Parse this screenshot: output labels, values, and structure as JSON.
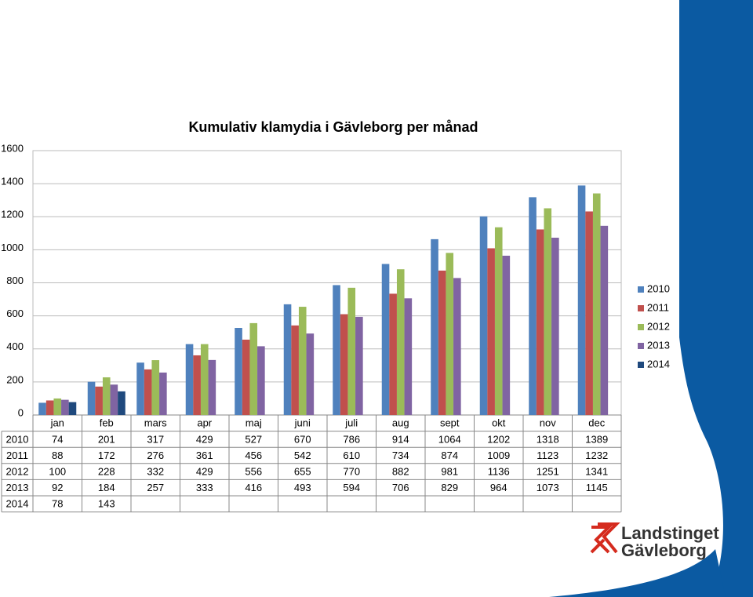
{
  "chart_data": {
    "type": "bar",
    "title": "Kumulativ klamydia i Gävleborg per månad",
    "categories": [
      "jan",
      "feb",
      "mars",
      "apr",
      "maj",
      "juni",
      "juli",
      "aug",
      "sept",
      "okt",
      "nov",
      "dec"
    ],
    "series": [
      {
        "name": "2010",
        "color": "#4f81bd",
        "values": [
          74,
          201,
          317,
          429,
          527,
          670,
          786,
          914,
          1064,
          1202,
          1318,
          1389
        ]
      },
      {
        "name": "2011",
        "color": "#c0504d",
        "values": [
          88,
          172,
          276,
          361,
          456,
          542,
          610,
          734,
          874,
          1009,
          1123,
          1232
        ]
      },
      {
        "name": "2012",
        "color": "#9bbb59",
        "values": [
          100,
          228,
          332,
          429,
          556,
          655,
          770,
          882,
          981,
          1136,
          1251,
          1341
        ]
      },
      {
        "name": "2013",
        "color": "#8064a2",
        "values": [
          92,
          184,
          257,
          333,
          416,
          493,
          594,
          706,
          829,
          964,
          1073,
          1145
        ]
      },
      {
        "name": "2014",
        "color": "#1f497d",
        "values": [
          78,
          143,
          null,
          null,
          null,
          null,
          null,
          null,
          null,
          null,
          null,
          null
        ]
      }
    ],
    "ylim": [
      0,
      1600
    ],
    "yticks": [
      0,
      200,
      400,
      600,
      800,
      1000,
      1200,
      1400,
      1600
    ],
    "grid": true,
    "legend": "right"
  },
  "logo": {
    "line1": "Landstinget",
    "line2": "Gävleborg"
  }
}
